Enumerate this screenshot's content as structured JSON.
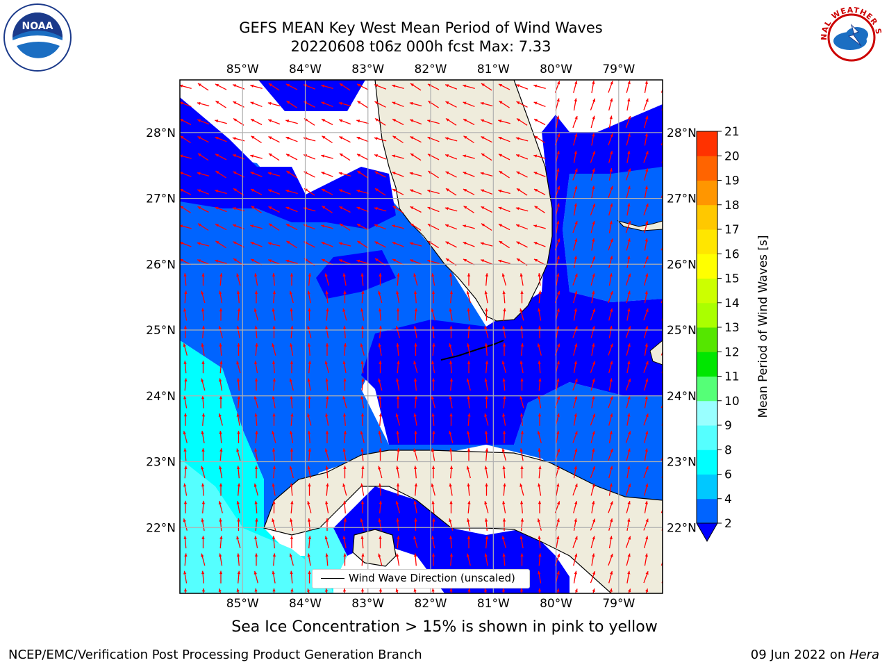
{
  "title": {
    "line1": "GEFS MEAN Key West Mean Period of Wind Waves",
    "line2": "20220608 t06z 000h fcst   Max: 7.33"
  },
  "logos": {
    "left": {
      "icon": "noaa-logo",
      "text": "NOAA"
    },
    "right": {
      "icon": "national-weather-service-logo",
      "text": "NATIONAL WEATHER SERVICE"
    }
  },
  "map": {
    "lon_labels": [
      "85°W",
      "84°W",
      "83°W",
      "82°W",
      "81°W",
      "80°W",
      "79°W"
    ],
    "lat_labels": [
      "28°N",
      "27°N",
      "26°N",
      "25°N",
      "24°N",
      "23°N",
      "22°N"
    ],
    "lon_range": [
      -86.0,
      -78.3
    ],
    "lat_range": [
      21.0,
      28.8
    ],
    "land_color": "#efecdc",
    "arrow_color": "#ff0000",
    "legend_label": "Wind Wave Direction (unscaled)"
  },
  "colorbar": {
    "label": "Mean Period of Wind Waves [s]",
    "ticks": [
      "2",
      "4",
      "6",
      "8",
      "9",
      "10",
      "11",
      "12",
      "13",
      "14",
      "15",
      "16",
      "17",
      "18",
      "19",
      "20",
      "21"
    ],
    "colors": [
      "#0064ff",
      "#00c8ff",
      "#00ffff",
      "#55ffff",
      "#99ffff",
      "#55ff77",
      "#00e600",
      "#55e600",
      "#aaff00",
      "#ccff00",
      "#ffff00",
      "#ffe600",
      "#ffc800",
      "#ff9600",
      "#ff6400",
      "#ff3200",
      "#ff0000"
    ],
    "under_color": "#0000ff"
  },
  "ice_note": "Sea Ice Concentration > 15% is shown in pink to yellow",
  "footer": {
    "left": "NCEP/EMC/Verification Post Processing Product Generation Branch",
    "right_prefix": "09 Jun 2022 on ",
    "right_machine": "Hera"
  }
}
